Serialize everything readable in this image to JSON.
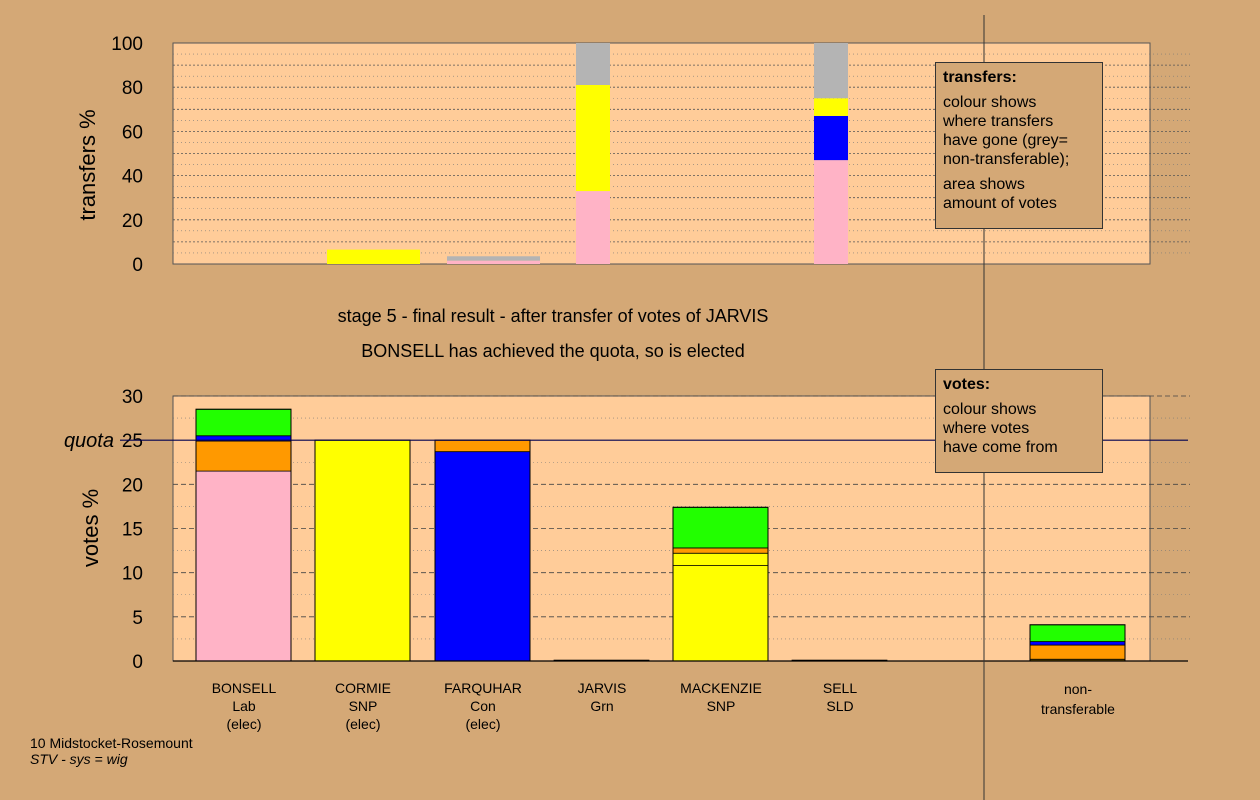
{
  "colors": {
    "background": "#d4a876",
    "plot_bg": "#ffcc99",
    "pink": "#ffb3c6",
    "yellow": "#ffff00",
    "blue": "#0000ff",
    "orange": "#ff9900",
    "green": "#22ff00",
    "grey": "#b4b4b4",
    "dark": "#806000"
  },
  "caption": {
    "line1": "stage 5 - final result - after transfer of votes of JARVIS",
    "line2": "BONSELL has achieved the quota, so is elected"
  },
  "footer": {
    "line1": "10 Midstocket-Rosemount",
    "line2": "STV - sys = wig"
  },
  "legend_transfers": {
    "title": "transfers:",
    "para1": [
      "colour shows",
      "where transfers",
      "have gone (grey=",
      "non-transferable);"
    ],
    "para2": [
      "area shows",
      "amount of votes"
    ]
  },
  "legend_votes": {
    "title": "votes:",
    "para1": [
      "colour shows",
      "where votes",
      "have come from"
    ]
  },
  "candidates": [
    {
      "name": "BONSELL",
      "party": "Lab",
      "status": "(elec)"
    },
    {
      "name": "CORMIE",
      "party": "SNP",
      "status": "(elec)"
    },
    {
      "name": "FARQUHAR",
      "party": "Con",
      "status": "(elec)"
    },
    {
      "name": "JARVIS",
      "party": "Grn",
      "status": ""
    },
    {
      "name": "MACKENZIE",
      "party": "SNP",
      "status": ""
    },
    {
      "name": "SELL",
      "party": "SLD",
      "status": ""
    },
    {
      "name": "non-",
      "party": "transferable",
      "status": ""
    }
  ],
  "chart_data": [
    {
      "type": "bar",
      "stacked": true,
      "ylabel": "transfers %",
      "ylim": [
        0,
        100
      ],
      "yticks": [
        0,
        20,
        40,
        60,
        80,
        100
      ],
      "bars": [
        {
          "candidate": "BONSELL",
          "segments": []
        },
        {
          "candidate": "CORMIE",
          "segments": [
            {
              "color": "yellow",
              "value": 6.5
            }
          ]
        },
        {
          "candidate": "FARQUHAR",
          "segments": [
            {
              "color": "pink",
              "value": 1.5
            },
            {
              "color": "grey",
              "value": 2.0
            }
          ]
        },
        {
          "candidate": "JARVIS",
          "segments": [
            {
              "color": "pink",
              "value": 33
            },
            {
              "color": "yellow",
              "value": 48
            },
            {
              "color": "grey",
              "value": 19
            }
          ]
        },
        {
          "candidate": "MACKENZIE",
          "segments": []
        },
        {
          "candidate": "SELL",
          "segments": [
            {
              "color": "pink",
              "value": 47
            },
            {
              "color": "blue",
              "value": 20
            },
            {
              "color": "yellow",
              "value": 8
            },
            {
              "color": "grey",
              "value": 25
            }
          ]
        }
      ]
    },
    {
      "type": "bar",
      "stacked": true,
      "ylabel": "votes %",
      "ylim": [
        0,
        30
      ],
      "yticks": [
        0,
        5,
        10,
        15,
        20,
        25,
        30
      ],
      "quota": {
        "label": "quota",
        "value": 25
      },
      "bars": [
        {
          "candidate": "BONSELL",
          "segments": [
            {
              "color": "pink",
              "value": 21.5
            },
            {
              "color": "orange",
              "value": 3.4
            },
            {
              "color": "blue",
              "value": 0.6
            },
            {
              "color": "green",
              "value": 3.0
            }
          ]
        },
        {
          "candidate": "CORMIE",
          "segments": [
            {
              "color": "yellow",
              "value": 25.0
            }
          ]
        },
        {
          "candidate": "FARQUHAR",
          "segments": [
            {
              "color": "blue",
              "value": 23.7
            },
            {
              "color": "orange",
              "value": 1.3
            }
          ]
        },
        {
          "candidate": "JARVIS",
          "segments": [
            {
              "color": "green",
              "value": 0.1
            }
          ]
        },
        {
          "candidate": "MACKENZIE",
          "segments": [
            {
              "color": "yellow",
              "value": 10.8
            },
            {
              "color": "yellow",
              "value": 1.4
            },
            {
              "color": "orange",
              "value": 0.6
            },
            {
              "color": "green",
              "value": 4.6
            }
          ]
        },
        {
          "candidate": "SELL",
          "segments": [
            {
              "color": "orange",
              "value": 0.1
            }
          ]
        },
        {
          "candidate": "non-transferable",
          "segments": [
            {
              "color": "dark",
              "value": 0.2
            },
            {
              "color": "orange",
              "value": 1.6
            },
            {
              "color": "blue",
              "value": 0.4
            },
            {
              "color": "green",
              "value": 1.9
            }
          ]
        }
      ]
    }
  ]
}
